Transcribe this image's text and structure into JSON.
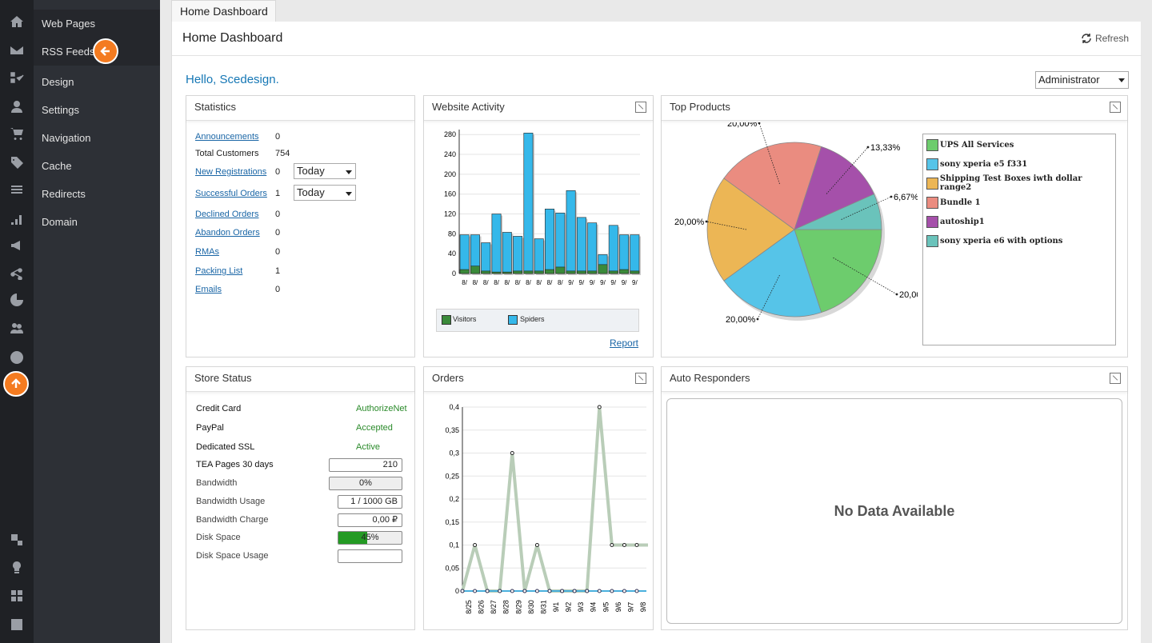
{
  "sidebar": {
    "items": [
      {
        "label": "Web Pages"
      },
      {
        "label": "RSS Feeds"
      },
      {
        "label": "Design"
      },
      {
        "label": "Settings"
      },
      {
        "label": "Navigation"
      },
      {
        "label": "Cache"
      },
      {
        "label": "Redirects"
      },
      {
        "label": "Domain"
      }
    ]
  },
  "iconbar": [
    "home-icon",
    "mail-icon",
    "workflow-icon",
    "user-icon",
    "cart-icon",
    "tag-icon",
    "sliders-icon",
    "bar-chart-icon",
    "megaphone-icon",
    "share-icon",
    "pie-chart-icon",
    "users-icon",
    "globe-icon",
    "scroll-up-icon",
    "layout-icon",
    "lightbulb-icon",
    "grid-icon",
    "calendar-icon"
  ],
  "tab": {
    "label": "Home Dashboard"
  },
  "header": {
    "title": "Home Dashboard",
    "refresh": "Refresh"
  },
  "greeting": "Hello, Scedesign.",
  "role": {
    "selected": "Administrator"
  },
  "statistics": {
    "title": "Statistics",
    "rows": [
      {
        "label": "Announcements",
        "value": "0",
        "link": true
      },
      {
        "label": "Total Customers",
        "value": "754",
        "link": false
      },
      {
        "label": "New Registrations",
        "value": "0",
        "link": true,
        "period": "Today"
      },
      {
        "label": "Successful Orders",
        "value": "1",
        "link": true,
        "period": "Today"
      },
      {
        "label": "Declined Orders",
        "value": "0",
        "link": true
      },
      {
        "label": "Abandon Orders",
        "value": "0",
        "link": true
      },
      {
        "label": "RMAs",
        "value": "0",
        "link": true
      },
      {
        "label": "Packing List",
        "value": "1",
        "link": true
      },
      {
        "label": "Emails",
        "value": "0",
        "link": true
      }
    ]
  },
  "website_activity": {
    "title": "Website Activity",
    "report_link": "Report"
  },
  "top_products": {
    "title": "Top Products"
  },
  "store_status": {
    "title": "Store Status",
    "rows": [
      {
        "label": "Credit Card",
        "value": "AuthorizeNet",
        "type": "text"
      },
      {
        "label": "PayPal",
        "value": "Accepted",
        "type": "text"
      },
      {
        "label": "Dedicated SSL",
        "value": "Active",
        "type": "text"
      },
      {
        "label": "TEA Pages 30 days",
        "value": "210",
        "type": "box"
      },
      {
        "label": "Bandwidth",
        "value": "0%",
        "type": "progress",
        "fill": 0
      },
      {
        "label": "Bandwidth Usage",
        "value": "1 / 1000 GB",
        "type": "box"
      },
      {
        "label": "Bandwidth Charge",
        "value": "0,00 ₽",
        "type": "box"
      },
      {
        "label": "Disk Space",
        "value": "45%",
        "type": "progress",
        "fill": 0.45
      },
      {
        "label": "Disk Space Usage",
        "value": "",
        "type": "box"
      }
    ]
  },
  "orders": {
    "title": "Orders"
  },
  "auto_responders": {
    "title": "Auto Responders",
    "empty": "No Data Available"
  },
  "colors": {
    "link": "#1a66a6",
    "accent": "#f47b20",
    "ok": "#2a8a2a",
    "spiders": "#35b8ea",
    "visitors": "#3a8a3a"
  },
  "chart_data": [
    {
      "type": "bar",
      "id": "website_activity",
      "categories": [
        "8/",
        "8/",
        "8/",
        "8/",
        "8/",
        "8/",
        "8/",
        "8/",
        "8/",
        "8/",
        "9/",
        "9/",
        "9/",
        "9/",
        "9/",
        "9/",
        "9/"
      ],
      "series": [
        {
          "name": "Visitors",
          "values": [
            8,
            15,
            5,
            3,
            3,
            5,
            5,
            5,
            8,
            13,
            5,
            5,
            5,
            18,
            5,
            8,
            5
          ]
        },
        {
          "name": "Spiders",
          "values": [
            78,
            78,
            62,
            120,
            83,
            75,
            283,
            70,
            130,
            122,
            167,
            113,
            102,
            38,
            97,
            78,
            78
          ]
        }
      ],
      "yticks": [
        0,
        40,
        80,
        120,
        160,
        200,
        240,
        280
      ],
      "ylim": [
        0,
        290
      ],
      "stacked": false
    },
    {
      "type": "pie",
      "id": "top_products",
      "slices": [
        {
          "label": "UPS All Services",
          "value": 20,
          "pct": "20,00%",
          "color": "#6dcc6d"
        },
        {
          "label": "sony xperia e5 f331",
          "value": 20,
          "pct": "20,00%",
          "color": "#56c4e8"
        },
        {
          "label": "Shipping Test Boxes iwth dollar range2",
          "value": 20,
          "pct": "20,00%",
          "color": "#ecb655"
        },
        {
          "label": "Bundle 1",
          "value": 20,
          "pct": "20,00%",
          "color": "#ea8c80"
        },
        {
          "label": "autoship1",
          "value": 13.33,
          "pct": "13,33%",
          "color": "#a550aa"
        },
        {
          "label": "sony xperia e6 with options",
          "value": 6.67,
          "pct": "6,67%",
          "color": "#6ac3bb"
        }
      ]
    },
    {
      "type": "line",
      "id": "orders",
      "x": [
        "8/25",
        "8/26",
        "8/27",
        "8/28",
        "8/29",
        "8/30",
        "8/31",
        "9/1",
        "9/2",
        "9/3",
        "9/4",
        "9/5",
        "9/6",
        "9/7",
        "9/8"
      ],
      "values": [
        0,
        0.1,
        0,
        0,
        0.3,
        0,
        0.1,
        0,
        0,
        0,
        0,
        0.4,
        0.1,
        0.1,
        0.1
      ],
      "yticks": [
        "0",
        "0,05",
        "0,1",
        "0,15",
        "0,2",
        "0,25",
        "0,3",
        "0,35",
        "0,4"
      ],
      "ylim": [
        0,
        0.4
      ]
    }
  ]
}
